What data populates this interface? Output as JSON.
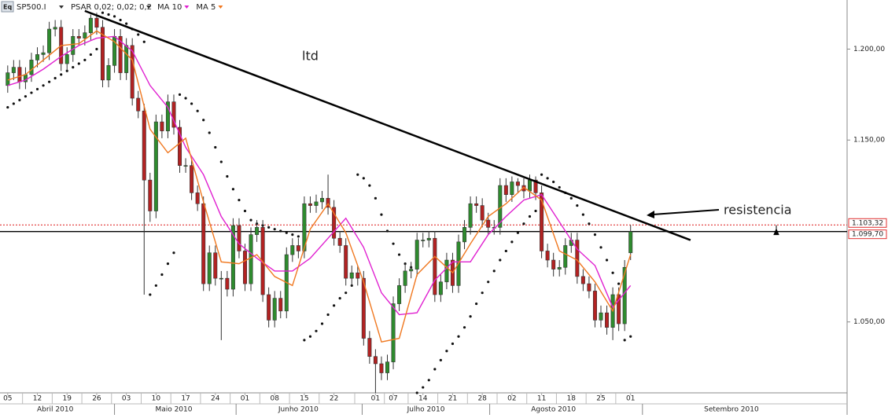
{
  "chart_data": {
    "type": "candlestick",
    "title": "SP500.I",
    "indicator": "PSAR 0,02; 0,02; 0,2",
    "up_color": "#2e8b2e",
    "down_color": "#b22222",
    "open": [
      1180,
      1187,
      1190,
      1182,
      1186,
      1194,
      1197,
      1198,
      1211,
      1212,
      1192,
      1197,
      1207,
      1206,
      1209,
      1217,
      1212,
      1183,
      1191,
      1207,
      1187,
      1202,
      1173,
      1166,
      1128,
      1111,
      1160,
      1155,
      1171,
      1157,
      1136,
      1136,
      1121,
      1115,
      1071,
      1088,
      1074,
      1074,
      1068,
      1103,
      1089,
      1071,
      1098,
      1102,
      1065,
      1051,
      1063,
      1056,
      1087,
      1092,
      1089,
      1115,
      1114,
      1116,
      1118,
      1113,
      1096,
      1092,
      1074,
      1077,
      1074,
      1041,
      1031,
      1027,
      1022,
      1028,
      1060,
      1070,
      1078,
      1079,
      1095,
      1095,
      1096,
      1065,
      1072,
      1084,
      1070,
      1094,
      1102,
      1115,
      1114,
      1106,
      1102,
      1102,
      1125,
      1120,
      1127,
      1125,
      1122,
      1128,
      1121,
      1089,
      1084,
      1079,
      1080,
      1092,
      1095,
      1075,
      1071,
      1067,
      1051,
      1055,
      1047,
      1065,
      1049,
      1088
    ],
    "high": [
      1191,
      1194,
      1194,
      1190,
      1198,
      1201,
      1202,
      1215,
      1216,
      1216,
      1201,
      1211,
      1211,
      1213,
      1219,
      1220,
      1216,
      1195,
      1211,
      1211,
      1206,
      1206,
      1177,
      1170,
      1132,
      1164,
      1164,
      1175,
      1175,
      1161,
      1140,
      1140,
      1125,
      1119,
      1092,
      1092,
      1078,
      1078,
      1107,
      1107,
      1093,
      1102,
      1106,
      1106,
      1069,
      1067,
      1067,
      1091,
      1096,
      1096,
      1119,
      1119,
      1120,
      1122,
      1131,
      1117,
      1100,
      1096,
      1081,
      1081,
      1078,
      1045,
      1035,
      1031,
      1032,
      1064,
      1074,
      1082,
      1083,
      1099,
      1099,
      1100,
      1100,
      1076,
      1088,
      1088,
      1098,
      1106,
      1119,
      1119,
      1118,
      1110,
      1106,
      1129,
      1129,
      1130,
      1129,
      1129,
      1131,
      1130,
      1125,
      1093,
      1088,
      1084,
      1096,
      1099,
      1099,
      1079,
      1075,
      1071,
      1059,
      1059,
      1069,
      1069,
      1084,
      1103.3
    ],
    "low": [
      1176,
      1183,
      1178,
      1178,
      1182,
      1190,
      1193,
      1194,
      1207,
      1188,
      1188,
      1193,
      1202,
      1202,
      1205,
      1208,
      1179,
      1179,
      1187,
      1183,
      1183,
      1169,
      1162,
      1065,
      1105,
      1107,
      1151,
      1151,
      1153,
      1132,
      1132,
      1117,
      1111,
      1067,
      1067,
      1070,
      1040,
      1064,
      1064,
      1085,
      1067,
      1067,
      1094,
      1061,
      1047,
      1047,
      1052,
      1052,
      1083,
      1085,
      1085,
      1110,
      1110,
      1112,
      1109,
      1092,
      1088,
      1070,
      1070,
      1070,
      1037,
      1027,
      1011,
      1018,
      1018,
      1024,
      1056,
      1066,
      1074,
      1075,
      1091,
      1091,
      1061,
      1061,
      1068,
      1066,
      1066,
      1090,
      1098,
      1110,
      1102,
      1098,
      1098,
      1098,
      1116,
      1116,
      1121,
      1118,
      1118,
      1117,
      1085,
      1080,
      1075,
      1075,
      1076,
      1088,
      1071,
      1067,
      1063,
      1047,
      1047,
      1043,
      1040,
      1045,
      1045,
      1084
    ],
    "close": [
      1187,
      1190,
      1182,
      1186,
      1194,
      1197,
      1198,
      1211,
      1212,
      1192,
      1197,
      1207,
      1206,
      1209,
      1217,
      1212,
      1183,
      1191,
      1207,
      1187,
      1202,
      1173,
      1166,
      1128,
      1111,
      1160,
      1155,
      1171,
      1157,
      1136,
      1136,
      1121,
      1115,
      1071,
      1088,
      1074,
      1074,
      1068,
      1103,
      1089,
      1071,
      1098,
      1102,
      1065,
      1051,
      1063,
      1056,
      1087,
      1092,
      1089,
      1115,
      1114,
      1116,
      1118,
      1113,
      1096,
      1092,
      1074,
      1077,
      1074,
      1041,
      1031,
      1027,
      1022,
      1028,
      1060,
      1070,
      1078,
      1079,
      1095,
      1095,
      1096,
      1065,
      1072,
      1084,
      1070,
      1094,
      1102,
      1115,
      1114,
      1106,
      1102,
      1102,
      1125,
      1120,
      1127,
      1125,
      1122,
      1128,
      1121,
      1089,
      1084,
      1079,
      1080,
      1092,
      1095,
      1075,
      1071,
      1067,
      1051,
      1055,
      1047,
      1065,
      1049,
      1080,
      1099.7
    ],
    "series": [
      {
        "name": "MA 10",
        "color": "#e020d0",
        "x": [
          0,
          3,
          6,
          9,
          12,
          15,
          18,
          21,
          24,
          27,
          30,
          33,
          36,
          39,
          42,
          45,
          48,
          51,
          54,
          57,
          60,
          63,
          66,
          69,
          72,
          75,
          78,
          81,
          84,
          87,
          90,
          93,
          96,
          99,
          102,
          105
        ],
        "values": [
          1180,
          1183,
          1189,
          1196,
          1202,
          1206,
          1207,
          1199,
          1180,
          1168,
          1146,
          1131,
          1108,
          1093,
          1085,
          1078,
          1078,
          1085,
          1096,
          1107,
          1091,
          1066,
          1054,
          1055,
          1073,
          1083,
          1083,
          1098,
          1108,
          1117,
          1120,
          1105,
          1090,
          1081,
          1058,
          1070
        ]
      },
      {
        "name": "MA 5",
        "color": "#f07820",
        "x": [
          0,
          3,
          6,
          9,
          12,
          15,
          18,
          21,
          24,
          27,
          30,
          33,
          36,
          39,
          42,
          45,
          48,
          51,
          54,
          57,
          60,
          63,
          66,
          69,
          72,
          75,
          78,
          81,
          84,
          87,
          90,
          93,
          96,
          99,
          102,
          105
        ],
        "values": [
          1183,
          1186,
          1194,
          1202,
          1203,
          1210,
          1204,
          1194,
          1156,
          1143,
          1151,
          1116,
          1083,
          1082,
          1087,
          1075,
          1070,
          1101,
          1115,
          1099,
          1072,
          1039,
          1041,
          1076,
          1086,
          1077,
          1093,
          1108,
          1115,
          1124,
          1117,
          1089,
          1084,
          1072,
          1056,
          1087
        ]
      }
    ],
    "psar": {
      "color": "#111",
      "values": [
        1168,
        1170,
        1172,
        1174,
        1176,
        1178,
        1180,
        1182,
        1184,
        1186,
        1188,
        1190,
        1192,
        1194,
        1197,
        1200,
        1220,
        1219,
        1218,
        1216,
        1214,
        1211,
        1208,
        1204,
        1065,
        1070,
        1076,
        1082,
        1088,
        1175,
        1173,
        1170,
        1166,
        1161,
        1154,
        1146,
        1138,
        1130,
        1123,
        1117,
        1111,
        1106,
        1104,
        1103,
        1102,
        1101,
        1100,
        1099,
        1098,
        1097,
        1040,
        1042,
        1045,
        1049,
        1054,
        1059,
        1063,
        1066,
        1070,
        1131,
        1129,
        1125,
        1118,
        1109,
        1100,
        1093,
        1087,
        1082,
        1080,
        1011,
        1014,
        1018,
        1024,
        1029,
        1034,
        1038,
        1042,
        1047,
        1053,
        1060,
        1066,
        1072,
        1078,
        1084,
        1089,
        1094,
        1099,
        1104,
        1108,
        1111,
        1131,
        1129,
        1127,
        1124,
        1121,
        1118,
        1114,
        1109,
        1104,
        1098,
        1091,
        1084,
        1077,
        1071,
        1040,
        1042
      ]
    },
    "xlim": [
      -1.3,
      141.5
    ],
    "xticks": [
      {
        "value": 0,
        "label": "05"
      },
      {
        "value": 5,
        "label": "12"
      },
      {
        "value": 10,
        "label": "19"
      },
      {
        "value": 15,
        "label": "26"
      },
      {
        "value": 20,
        "label": "03"
      },
      {
        "value": 25,
        "label": "10"
      },
      {
        "value": 30,
        "label": "17"
      },
      {
        "value": 35,
        "label": "24"
      },
      {
        "value": 40,
        "label": "01"
      },
      {
        "value": 45,
        "label": "08"
      },
      {
        "value": 50,
        "label": "15"
      },
      {
        "value": 55,
        "label": "22"
      },
      {
        "value": 62,
        "label": "01"
      },
      {
        "value": 65,
        "label": "07"
      },
      {
        "value": 70,
        "label": "14"
      },
      {
        "value": 75,
        "label": "21"
      },
      {
        "value": 80,
        "label": "28"
      },
      {
        "value": 85,
        "label": "02"
      },
      {
        "value": 90,
        "label": "11"
      },
      {
        "value": 95,
        "label": "18"
      },
      {
        "value": 100,
        "label": "25"
      },
      {
        "value": 105,
        "label": "01"
      }
    ],
    "month_labels": [
      {
        "value": 8,
        "label": "Abril 2010"
      },
      {
        "value": 28,
        "label": "Maio 2010"
      },
      {
        "value": 49,
        "label": "Junho 2010"
      },
      {
        "value": 70.5,
        "label": "Julho 2010"
      },
      {
        "value": 92,
        "label": "Agosto 2010"
      },
      {
        "value": 122,
        "label": "Setembro 2010"
      }
    ],
    "ylim": [
      1011,
      1227
    ],
    "yticks": [
      {
        "value": 1200,
        "label": "1.200,00"
      },
      {
        "value": 1150,
        "label": "1.150,00"
      },
      {
        "value": 1050,
        "label": "1.050,00"
      }
    ],
    "price_lines": [
      {
        "value": 1103.32,
        "label": "1.103,32",
        "color": "#e03030",
        "style": "dotted"
      },
      {
        "value": 1099.7,
        "label": "1.099,70",
        "color": "#000000",
        "style": "solid"
      }
    ],
    "trendline": {
      "x": [
        13,
        115.1
      ],
      "y": [
        1221,
        1095
      ]
    },
    "annotations": [
      {
        "text": "ltd"
      },
      {
        "text": "resistencia"
      }
    ]
  }
}
